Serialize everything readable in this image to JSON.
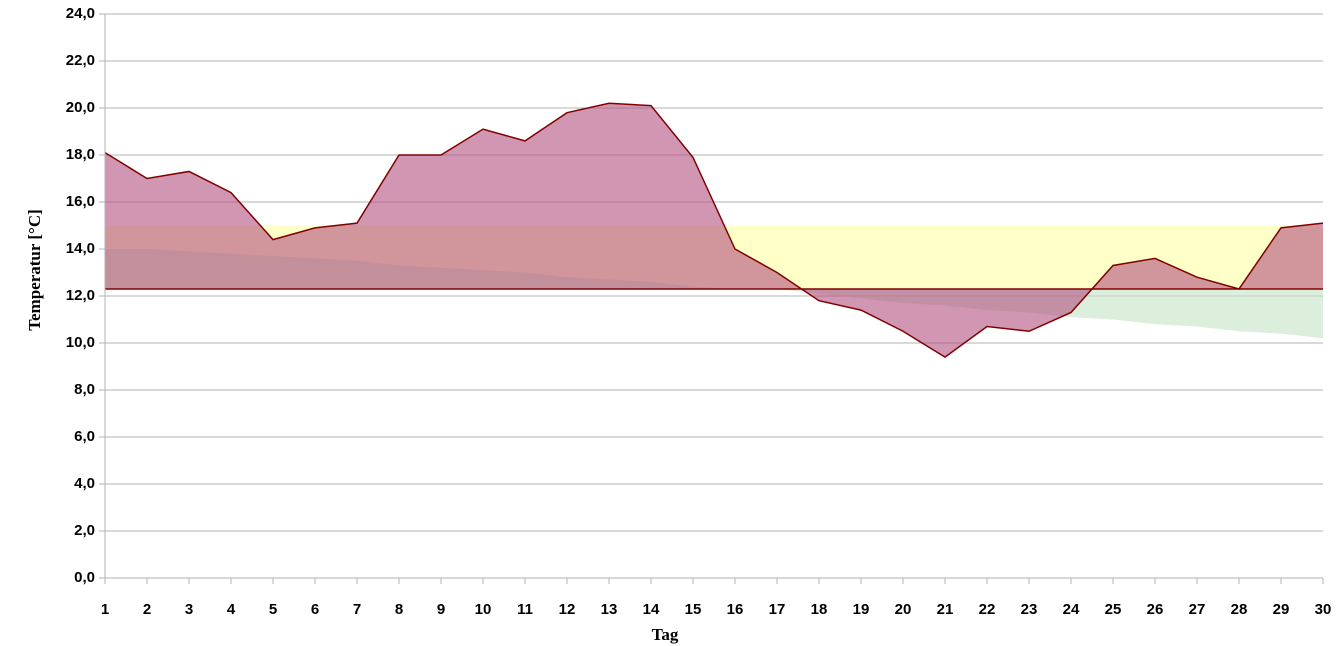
{
  "chart_data": {
    "type": "area",
    "x_label": "Tag",
    "y_label": "Temperatur [°C]",
    "x": [
      1,
      2,
      3,
      4,
      5,
      6,
      7,
      8,
      9,
      10,
      11,
      12,
      13,
      14,
      15,
      16,
      17,
      18,
      19,
      20,
      21,
      22,
      23,
      24,
      25,
      26,
      27,
      28,
      29,
      30
    ],
    "xlim": [
      1,
      30
    ],
    "baseline": 12.3,
    "baseline_color": "#800000",
    "series": [
      {
        "color": "#ffffc8",
        "values": [
          15,
          15,
          15,
          15,
          15,
          15,
          15,
          15,
          15,
          15,
          15,
          15,
          15,
          15,
          15,
          15,
          15,
          15,
          15,
          15,
          15,
          15,
          15,
          15,
          15,
          15,
          15,
          15,
          15,
          15
        ]
      },
      {
        "color": "#c4e3c4",
        "values": [
          14.0,
          14.0,
          13.9,
          13.8,
          13.7,
          13.6,
          13.5,
          13.3,
          13.2,
          13.1,
          13.0,
          12.8,
          12.7,
          12.6,
          12.4,
          12.3,
          12.3,
          12.1,
          11.9,
          11.7,
          11.6,
          11.4,
          11.3,
          11.1,
          11.0,
          10.8,
          10.7,
          10.5,
          10.4,
          10.2
        ]
      },
      {
        "color": "#b0507f",
        "line": "#800000",
        "values": [
          18.1,
          17.0,
          17.3,
          16.4,
          14.4,
          14.9,
          15.1,
          18.0,
          18.0,
          19.1,
          18.6,
          19.8,
          20.2,
          20.1,
          17.9,
          14.0,
          13.0,
          11.8,
          11.4,
          10.5,
          9.4,
          10.7,
          10.5,
          11.3,
          13.3,
          13.6,
          12.8,
          12.3,
          14.9,
          15.1
        ]
      }
    ],
    "ylim": [
      0,
      24
    ],
    "yticks": [
      {
        "value": 0,
        "label": "0,0"
      },
      {
        "value": 2,
        "label": "2,0"
      },
      {
        "value": 4,
        "label": "4,0"
      },
      {
        "value": 6,
        "label": "6,0"
      },
      {
        "value": 8,
        "label": "8,0"
      },
      {
        "value": 10,
        "label": "10,0"
      },
      {
        "value": 12,
        "label": "12,0"
      },
      {
        "value": 14,
        "label": "14,0"
      },
      {
        "value": 16,
        "label": "16,0"
      },
      {
        "value": 18,
        "label": "18,0"
      },
      {
        "value": 20,
        "label": "20,0"
      },
      {
        "value": 22,
        "label": "22,0"
      },
      {
        "value": 24,
        "label": "24,0"
      }
    ],
    "grid": true
  }
}
